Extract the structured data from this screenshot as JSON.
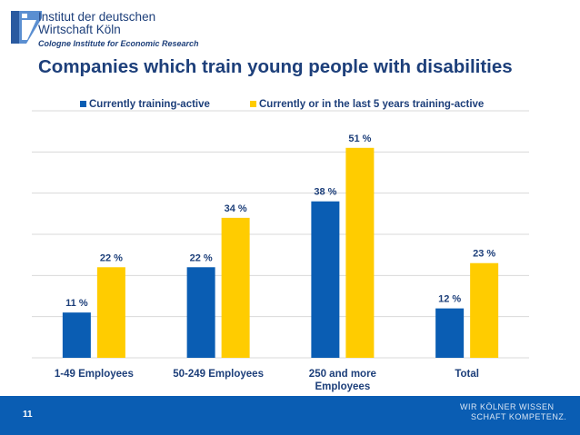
{
  "header": {
    "logo_line1": "Institut der deutschen",
    "logo_line2": "Wirtschaft Köln",
    "logo_sub": "Cologne Institute for Economic Research"
  },
  "chart_data": {
    "type": "bar",
    "title": "Companies which train young people with disabilities",
    "categories": [
      "1-49 Employees",
      "50-249 Employees",
      "250 and more Employees",
      "Total"
    ],
    "series": [
      {
        "name": "Currently training-active",
        "values": [
          11,
          22,
          38,
          12
        ],
        "labels": [
          "11 %",
          "22 %",
          "38 %",
          "12 %"
        ],
        "color": "#0a5db3"
      },
      {
        "name": "Currently or in the last 5 years training-active",
        "values": [
          22,
          34,
          51,
          23
        ],
        "labels": [
          "22 %",
          "34 %",
          "51 %",
          "23 %"
        ],
        "color": "#ffcc00"
      }
    ],
    "ylim": [
      0,
      60
    ],
    "grid": true,
    "legend": "top-center",
    "xlabel": "",
    "ylabel": ""
  },
  "footer": {
    "page_number": "11",
    "tagline_line1": "WIR KÖLNER WISSEN",
    "tagline_line2": "SCHAFT KOMPETENZ."
  }
}
